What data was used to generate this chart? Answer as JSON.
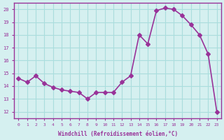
{
  "x": [
    0,
    1,
    2,
    3,
    4,
    5,
    6,
    7,
    8,
    9,
    10,
    11,
    12,
    13,
    14,
    15,
    16,
    17,
    18,
    19,
    20,
    21,
    22,
    23
  ],
  "y": [
    14.6,
    14.3,
    14.8,
    14.2,
    13.9,
    13.7,
    13.6,
    13.5,
    13.0,
    13.5,
    13.5,
    13.5,
    14.3,
    14.8,
    18.0,
    17.3,
    19.9,
    20.1,
    20.0,
    19.5,
    18.8,
    18.0,
    16.5,
    12.0
  ],
  "line_color": "#993399",
  "marker": "D",
  "markersize": 3,
  "linewidth": 1.2,
  "bg_color": "#d5f0f0",
  "grid_color": "#aadddd",
  "xlabel": "Windchill (Refroidissement éolien,°C)",
  "xlabel_color": "#993399",
  "ylabel_ticks": [
    12,
    13,
    14,
    15,
    16,
    17,
    18,
    19,
    20
  ],
  "ylim": [
    11.5,
    20.5
  ],
  "xlim": [
    -0.5,
    23.5
  ],
  "tick_color": "#993399",
  "axis_color": "#993399"
}
